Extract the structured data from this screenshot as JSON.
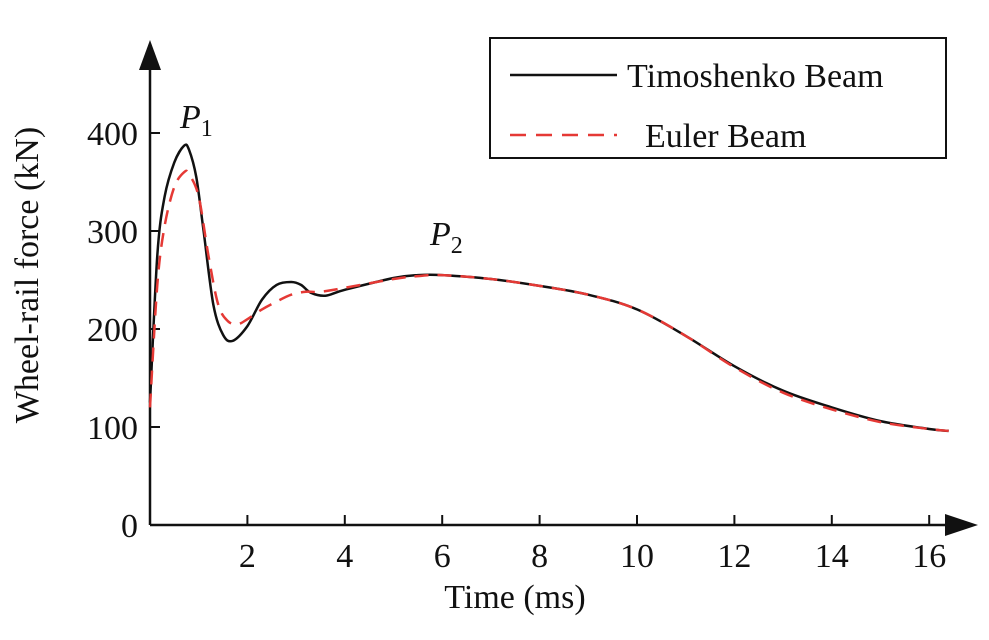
{
  "chart_data": {
    "type": "line",
    "title": "",
    "xlabel": "Time (ms)",
    "ylabel": "Wheel-rail force (kN)",
    "xlim": [
      0,
      16.5
    ],
    "ylim": [
      0,
      400
    ],
    "x_ticks": [
      "2",
      "4",
      "6",
      "8",
      "10",
      "12",
      "14",
      "16"
    ],
    "y_ticks": [
      "0",
      "100",
      "200",
      "300",
      "400"
    ],
    "grid": false,
    "legend_position": "top-right",
    "series": [
      {
        "name": "Timoshenko Beam",
        "color": "#111111",
        "style": "solid",
        "x": [
          0.0,
          0.15,
          0.3,
          0.5,
          0.7,
          0.8,
          0.95,
          1.1,
          1.3,
          1.5,
          1.7,
          2.0,
          2.3,
          2.6,
          2.9,
          3.1,
          3.3,
          3.6,
          4.0,
          5.0,
          5.5,
          6.0,
          7.0,
          8.0,
          9.0,
          10.0,
          11.0,
          12.0,
          13.0,
          14.0,
          15.0,
          16.0,
          16.4
        ],
        "y": [
          125,
          275,
          335,
          370,
          387,
          383,
          355,
          300,
          225,
          194,
          188,
          203,
          230,
          245,
          248,
          245,
          237,
          234,
          240,
          252,
          255,
          255,
          251,
          244,
          235,
          220,
          193,
          162,
          137,
          120,
          106,
          98,
          96
        ]
      },
      {
        "name": "Euler Beam",
        "color": "#e53935",
        "style": "dashed",
        "x": [
          0.0,
          0.15,
          0.3,
          0.5,
          0.7,
          0.8,
          1.0,
          1.2,
          1.4,
          1.6,
          1.8,
          2.0,
          2.3,
          2.6,
          2.9,
          3.2,
          3.5,
          4.0,
          5.0,
          5.5,
          6.0,
          7.0,
          8.0,
          9.0,
          10.0,
          11.0,
          12.0,
          13.0,
          14.0,
          15.0,
          16.0,
          16.4
        ],
        "y": [
          120,
          245,
          305,
          345,
          360,
          358,
          335,
          275,
          225,
          208,
          205,
          210,
          220,
          228,
          235,
          238,
          238,
          242,
          251,
          254,
          255,
          251,
          244,
          235,
          220,
          193,
          161,
          135,
          118,
          105,
          98,
          96
        ]
      }
    ],
    "annotations": [
      {
        "text": "P",
        "sub": "1",
        "x": 0.75,
        "y": 400
      },
      {
        "text": "P",
        "sub": "2",
        "x": 5.8,
        "y": 270
      }
    ]
  }
}
